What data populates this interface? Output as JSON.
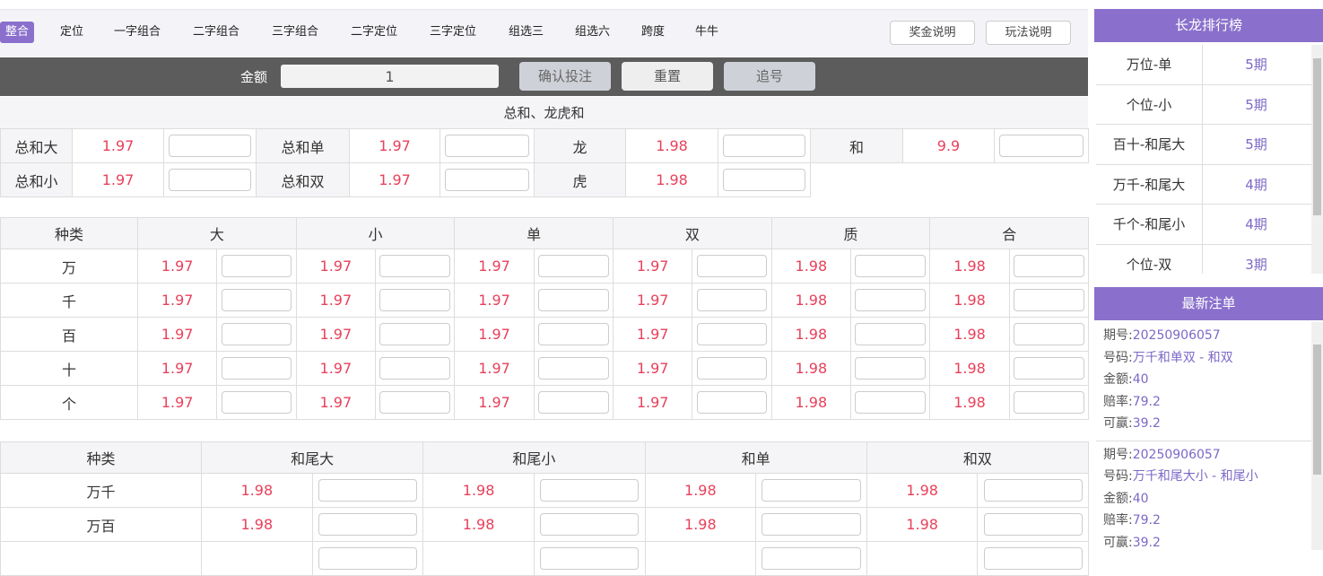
{
  "nav": {
    "tabs": [
      "整合",
      "定位",
      "一字组合",
      "二字组合",
      "三字组合",
      "二字定位",
      "三字定位",
      "组选三",
      "组选六",
      "跨度",
      "牛牛"
    ],
    "active": 0,
    "buttons": [
      "奖金说明",
      "玩法说明"
    ]
  },
  "bet_bar": {
    "amount_label": "金额",
    "amount_value": "1",
    "confirm": "确认投注",
    "reset": "重置",
    "chase": "追号"
  },
  "section_title": "总和、龙虎和",
  "sum_table": [
    [
      {
        "label": "总和大",
        "odds": "1.97"
      },
      {
        "label": "总和单",
        "odds": "1.97"
      },
      {
        "label": "龙",
        "odds": "1.98"
      },
      {
        "label": "和",
        "odds": "9.9"
      }
    ],
    [
      {
        "label": "总和小",
        "odds": "1.97"
      },
      {
        "label": "总和双",
        "odds": "1.97"
      },
      {
        "label": "虎",
        "odds": "1.98"
      }
    ]
  ],
  "pos_table": {
    "headers": [
      "种类",
      "大",
      "小",
      "单",
      "双",
      "质",
      "合"
    ],
    "rows": [
      {
        "label": "万",
        "odds": [
          "1.97",
          "1.97",
          "1.97",
          "1.97",
          "1.98",
          "1.98"
        ]
      },
      {
        "label": "千",
        "odds": [
          "1.97",
          "1.97",
          "1.97",
          "1.97",
          "1.98",
          "1.98"
        ]
      },
      {
        "label": "百",
        "odds": [
          "1.97",
          "1.97",
          "1.97",
          "1.97",
          "1.98",
          "1.98"
        ]
      },
      {
        "label": "十",
        "odds": [
          "1.97",
          "1.97",
          "1.97",
          "1.97",
          "1.98",
          "1.98"
        ]
      },
      {
        "label": "个",
        "odds": [
          "1.97",
          "1.97",
          "1.97",
          "1.97",
          "1.98",
          "1.98"
        ]
      }
    ]
  },
  "pair_table": {
    "headers": [
      "种类",
      "和尾大",
      "和尾小",
      "和单",
      "和双"
    ],
    "rows": [
      {
        "label": "万千",
        "odds": [
          "1.98",
          "1.98",
          "1.98",
          "1.98"
        ]
      },
      {
        "label": "万百",
        "odds": [
          "1.98",
          "1.98",
          "1.98",
          "1.98"
        ]
      },
      {
        "label": "",
        "odds": [
          "",
          "",
          "",
          ""
        ]
      }
    ]
  },
  "ranking": {
    "title": "长龙排行榜",
    "items": [
      {
        "name": "万位-单",
        "count": "5期"
      },
      {
        "name": "个位-小",
        "count": "5期"
      },
      {
        "name": "百十-和尾大",
        "count": "5期"
      },
      {
        "name": "万千-和尾大",
        "count": "4期"
      },
      {
        "name": "千个-和尾小",
        "count": "4期"
      },
      {
        "name": "个位-双",
        "count": "3期"
      }
    ]
  },
  "latest_bets": {
    "title": "最新注单",
    "labels": {
      "issue": "期号:",
      "number": "号码:",
      "amount": "金额:",
      "rate": "赔率:",
      "win": "可赢:"
    },
    "items": [
      {
        "issue": "20250906057",
        "number": "万千和单双 - 和双",
        "amount": "40",
        "rate": "79.2",
        "win": "39.2"
      },
      {
        "issue": "20250906057",
        "number": "万千和尾大小 - 和尾小",
        "amount": "40",
        "rate": "79.2",
        "win": "39.2"
      }
    ]
  }
}
